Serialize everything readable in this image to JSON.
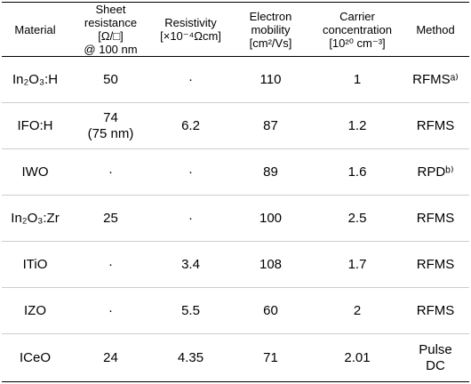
{
  "table": {
    "header": [
      [
        "Material"
      ],
      [
        "Sheet",
        "resistance",
        "[Ω/□]",
        "@ 100 nm"
      ],
      [
        "Resistivity",
        "[×10⁻⁴Ωcm]"
      ],
      [
        "Electron",
        "mobility",
        "[cm²/Vs]"
      ],
      [
        "Carrier",
        "concentration",
        "[10²⁰ cm⁻³]"
      ],
      [
        "Method"
      ]
    ],
    "rows": [
      [
        [
          "In₂O₃:H"
        ],
        [
          "50"
        ],
        [
          "·"
        ],
        [
          "110"
        ],
        [
          "1"
        ],
        [
          "RFMSᵃ⁾"
        ]
      ],
      [
        [
          "IFO:H"
        ],
        [
          "74",
          "(75 nm)"
        ],
        [
          "6.2"
        ],
        [
          "87"
        ],
        [
          "1.2"
        ],
        [
          "RFMS"
        ]
      ],
      [
        [
          "IWO"
        ],
        [
          "·"
        ],
        [
          "·"
        ],
        [
          "89"
        ],
        [
          "1.6"
        ],
        [
          "RPDᵇ⁾"
        ]
      ],
      [
        [
          "In₂O₃:Zr"
        ],
        [
          "25"
        ],
        [
          "·"
        ],
        [
          "100"
        ],
        [
          "2.5"
        ],
        [
          "RFMS"
        ]
      ],
      [
        [
          "ITiO"
        ],
        [
          "·"
        ],
        [
          "3.4"
        ],
        [
          "108"
        ],
        [
          "1.7"
        ],
        [
          "RFMS"
        ]
      ],
      [
        [
          "IZO"
        ],
        [
          "·"
        ],
        [
          "5.5"
        ],
        [
          "60"
        ],
        [
          "2"
        ],
        [
          "RFMS"
        ]
      ],
      [
        [
          "ICeO"
        ],
        [
          "24"
        ],
        [
          "4.35"
        ],
        [
          "71"
        ],
        [
          "2.01"
        ],
        [
          "Pulse",
          "DC"
        ]
      ]
    ]
  }
}
